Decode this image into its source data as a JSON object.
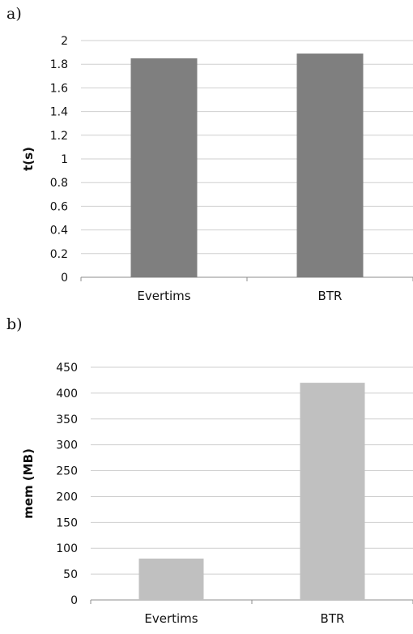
{
  "panels": [
    {
      "label": "a)"
    },
    {
      "label": "b)"
    }
  ],
  "chart_data": [
    {
      "type": "bar",
      "categories": [
        "Evertims",
        "BTR"
      ],
      "values": [
        1.85,
        1.89
      ],
      "title": "",
      "xlabel": "",
      "ylabel": "t(s)",
      "ylim": [
        0,
        2
      ],
      "yticks": [
        "0",
        "0.2",
        "0.4",
        "0.6",
        "0.8",
        "1",
        "1.2",
        "1.4",
        "1.6",
        "1.8",
        "2"
      ],
      "grid": true,
      "bar_color": "#7f7f7f"
    },
    {
      "type": "bar",
      "categories": [
        "Evertims",
        "BTR"
      ],
      "values": [
        80,
        420
      ],
      "title": "",
      "xlabel": "",
      "ylabel": "mem (MB)",
      "ylim": [
        0,
        450
      ],
      "yticks": [
        "0",
        "50",
        "100",
        "150",
        "200",
        "250",
        "300",
        "350",
        "400",
        "450"
      ],
      "grid": true,
      "bar_color": "#c0c0c0"
    }
  ]
}
